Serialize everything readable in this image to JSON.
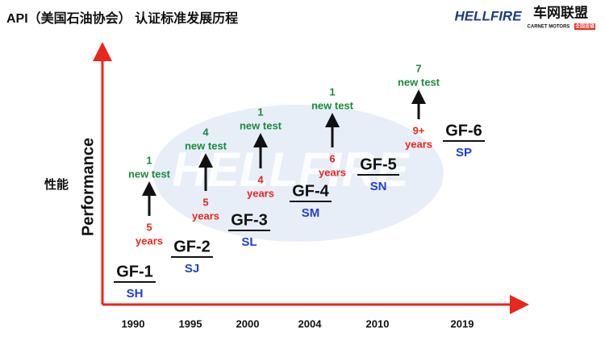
{
  "header": {
    "title": "API（美国石油协会） 认证标准发展历程",
    "logo": "HELLFIRE",
    "brand": "车网联盟",
    "brand_sub": "CARNET MOTORS",
    "brand_tag": "全国连锁"
  },
  "watermark": "HELLFIRE",
  "axes": {
    "y_label": "Performance",
    "y_label_cn": "性能"
  },
  "stages": [
    {
      "year": "1990",
      "grade": "GF-1",
      "api": "SH"
    },
    {
      "year": "1995",
      "grade": "GF-2",
      "api": "SJ"
    },
    {
      "year": "2000",
      "grade": "GF-3",
      "api": "SL"
    },
    {
      "year": "2004",
      "grade": "GF-4",
      "api": "SM"
    },
    {
      "year": "2010",
      "grade": "GF-5",
      "api": "SN"
    },
    {
      "year": "2019",
      "grade": "GF-6",
      "api": "SP"
    }
  ],
  "gaps": [
    {
      "tests": "1",
      "tests_label": "new test",
      "years": "5",
      "years_label": "years"
    },
    {
      "tests": "4",
      "tests_label": "new test",
      "years": "5",
      "years_label": "years"
    },
    {
      "tests": "1",
      "tests_label": "new test",
      "years": "4",
      "years_label": "years"
    },
    {
      "tests": "1",
      "tests_label": "new test",
      "years": "6",
      "years_label": "years"
    },
    {
      "tests": "7",
      "tests_label": "new test",
      "years": "9+",
      "years_label": "years"
    }
  ]
}
